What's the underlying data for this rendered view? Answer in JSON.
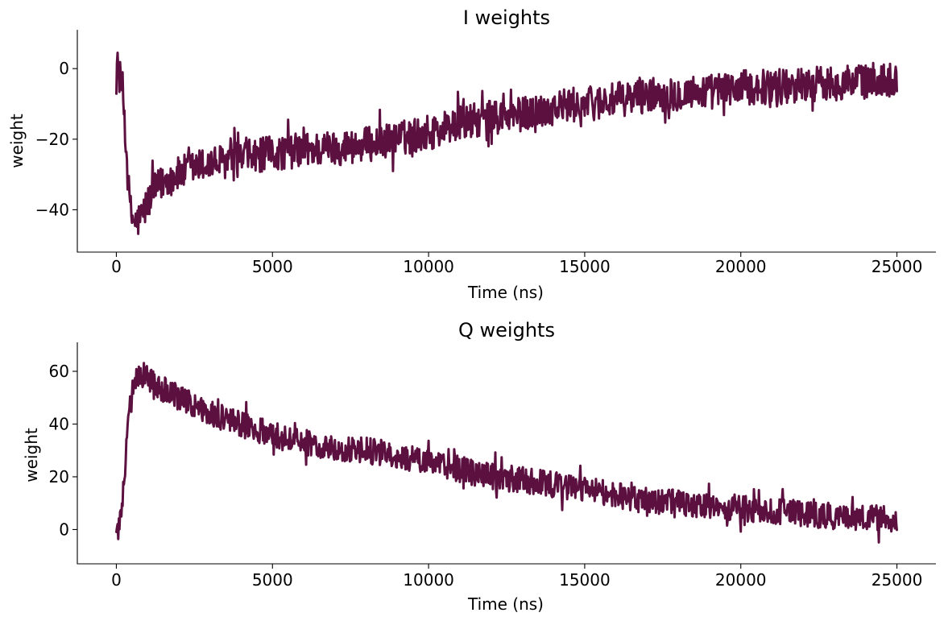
{
  "chart_data": [
    {
      "type": "line",
      "title": "I weights",
      "xlabel": "Time (ns)",
      "ylabel": "weight",
      "xlim": [
        -1250,
        26250
      ],
      "ylim": [
        -52,
        11
      ],
      "xticks": [
        0,
        5000,
        10000,
        15000,
        20000,
        25000
      ],
      "xtick_labels": [
        "0",
        "5000",
        "10000",
        "15000",
        "20000",
        "25000"
      ],
      "yticks": [
        0,
        -20,
        -40
      ],
      "ytick_labels": [
        "0",
        "−20",
        "−40"
      ],
      "grid": false,
      "series": [
        {
          "color": "#5c1040",
          "noise_amplitude": 5,
          "x": [
            0,
            50,
            100,
            150,
            200,
            250,
            300,
            350,
            400,
            450,
            500,
            550,
            600,
            650,
            700,
            800,
            900,
            1000,
            1200,
            1500,
            2000,
            2500,
            3000,
            4000,
            5000,
            6000,
            7000,
            8000,
            9000,
            10000,
            11000,
            12000,
            13000,
            14000,
            15000,
            16000,
            17000,
            18000,
            19000,
            20000,
            21000,
            22000,
            23000,
            24000,
            25000
          ],
          "values": [
            2,
            0,
            -2,
            -4,
            -6,
            -12,
            -20,
            -28,
            -35,
            -40,
            -42,
            -43,
            -43.5,
            -43.5,
            -43,
            -42,
            -40,
            -38,
            -35,
            -32,
            -30,
            -28,
            -27,
            -25.5,
            -24,
            -23,
            -22.5,
            -21.5,
            -20,
            -18,
            -15.5,
            -14,
            -13,
            -11,
            -10,
            -9,
            -7.5,
            -7,
            -6.5,
            -5.5,
            -5,
            -4.5,
            -4,
            -3.5,
            -3
          ]
        }
      ]
    },
    {
      "type": "line",
      "title": "Q weights",
      "xlabel": "Time (ns)",
      "ylabel": "weight",
      "xlim": [
        -1250,
        26250
      ],
      "ylim": [
        -13,
        71
      ],
      "xticks": [
        0,
        5000,
        10000,
        15000,
        20000,
        25000
      ],
      "xtick_labels": [
        "0",
        "5000",
        "10000",
        "15000",
        "20000",
        "25000"
      ],
      "yticks": [
        0,
        20,
        40,
        60
      ],
      "ytick_labels": [
        "0",
        "20",
        "40",
        "60"
      ],
      "grid": false,
      "series": [
        {
          "color": "#5c1040",
          "noise_amplitude": 5,
          "x": [
            0,
            50,
            100,
            150,
            200,
            250,
            300,
            350,
            400,
            450,
            500,
            600,
            700,
            800,
            900,
            1000,
            1200,
            1500,
            2000,
            2500,
            3000,
            4000,
            5000,
            6000,
            7000,
            8000,
            9000,
            10000,
            11000,
            12000,
            13000,
            14000,
            15000,
            16000,
            17000,
            18000,
            19000,
            20000,
            21000,
            22000,
            23000,
            24000,
            25000
          ],
          "values": [
            0,
            0,
            2,
            5,
            10,
            18,
            28,
            36,
            42,
            47,
            51,
            55,
            58,
            59,
            59,
            58,
            56,
            53,
            50,
            47,
            44,
            40,
            36,
            33,
            31,
            30,
            28,
            25,
            23,
            20,
            19,
            17,
            15,
            13,
            11,
            10,
            9,
            8,
            7,
            6,
            5,
            4.5,
            4
          ]
        }
      ]
    }
  ]
}
